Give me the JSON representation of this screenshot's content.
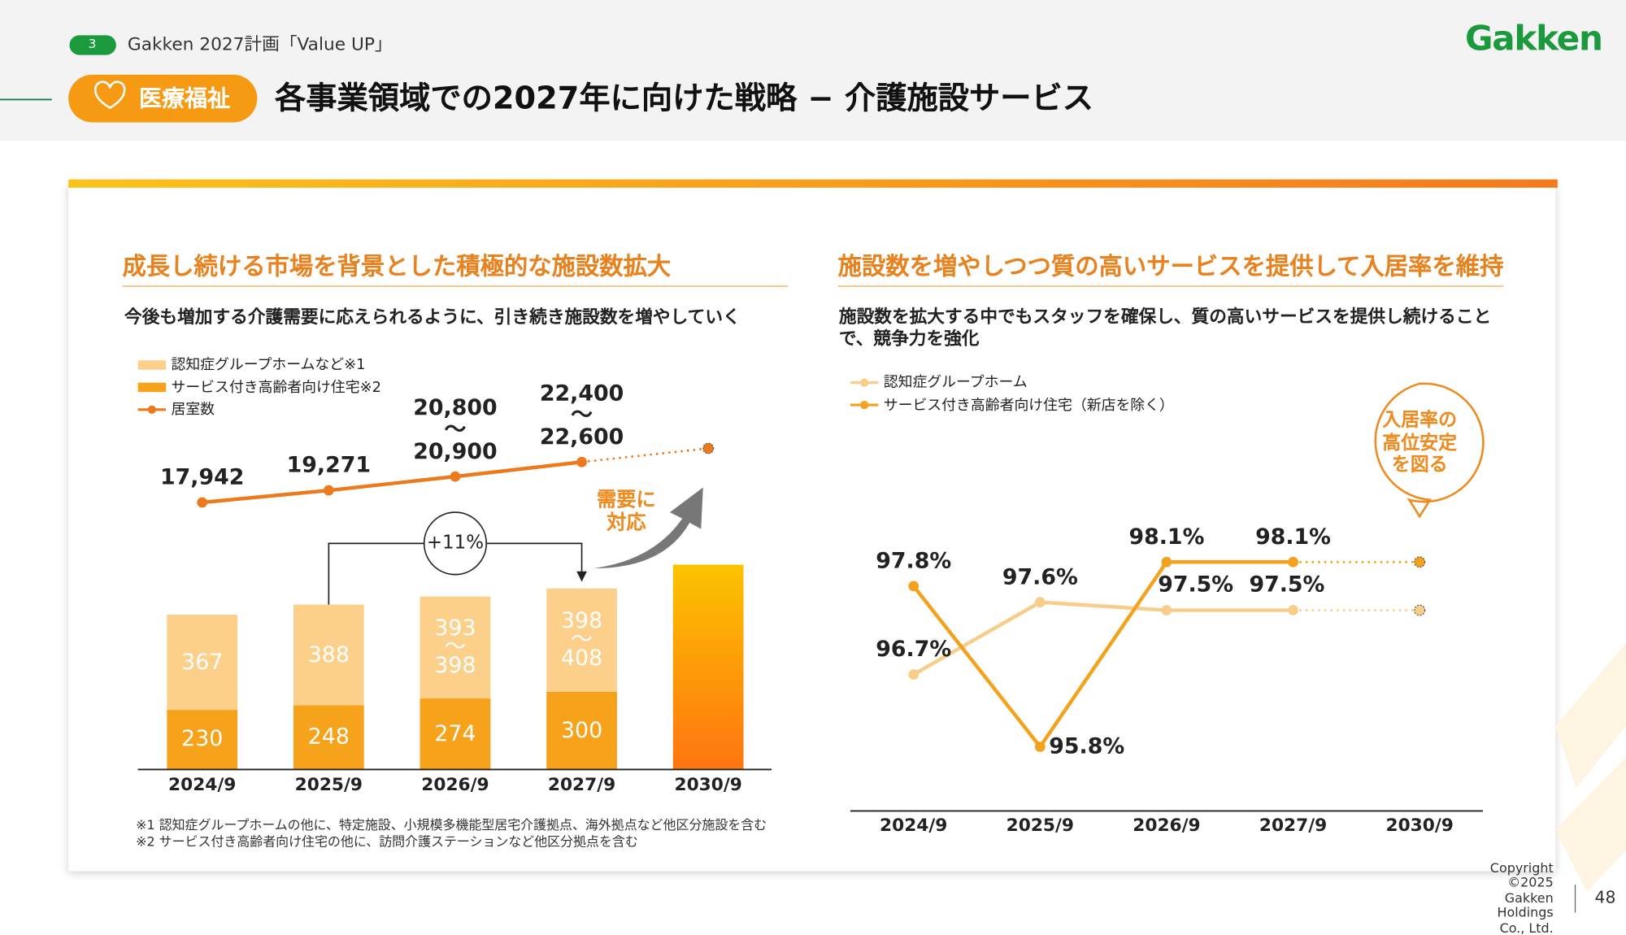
{
  "header": {
    "page_badge": "3",
    "plan": "Gakken 2027計画「Value UP」",
    "logo": "Gakken",
    "segment": "医療福祉",
    "title": "各事業領域での2027年に向けた戦略 − 介護施設サービス"
  },
  "footer": {
    "copyright": "Copyright ©2025 Gakken Holdings Co., Ltd.",
    "page": "48"
  },
  "chart_data": [
    {
      "type": "bar",
      "title": "成長し続ける市場を背景とした積極的な施設数拡大",
      "subtitle": "今後も増加する介護需要に応えられるように、引き続き施設数を増やしていく",
      "categories": [
        "2024/9",
        "2025/9",
        "2026/9",
        "2027/9",
        "2030/9"
      ],
      "series": [
        {
          "name": "サービス付き高齢者向け住宅※2",
          "color": "#f7a21b",
          "values": [
            230,
            248,
            274,
            300,
            null
          ]
        },
        {
          "name": "認知症グループホームなど※1",
          "color": "#fcd08b",
          "values": [
            367,
            388,
            393,
            398,
            null
          ],
          "value_labels": [
            "367",
            "388",
            "393\n〜\n398",
            "398\n〜\n408",
            null
          ]
        },
        {
          "color": "#ff7410",
          "values": [
            null,
            null,
            null,
            null,
            790
          ]
        },
        {
          "name": "居室数",
          "type": "line",
          "axis": "y2",
          "color": "#ec7a1c",
          "values": [
            17942,
            19271,
            20800,
            22400,
            null
          ],
          "value_labels": [
            "17,942",
            "19,271",
            "20,800\n〜\n20,900",
            "22,400\n〜\n22,600",
            null
          ]
        },
        {
          "type": "line",
          "axis": "y2",
          "style": "dotted",
          "color": "#ec7a1c",
          "values": [
            null,
            null,
            null,
            22400,
            23900
          ]
        }
      ],
      "ylim": [
        0,
        900
      ],
      "y2lim": [
        10000,
        30000
      ],
      "annotations": {
        "growth": "+11%",
        "demand": "需要に\n対応"
      },
      "notes": [
        "※1 認知症グループホームの他に、特定施設、小規模多機能型居宅介護拠点、海外拠点など他区分施設を含む",
        "※2 サービス付き高齢者向け住宅の他に、訪問介護ステーションなど他区分拠点を含む"
      ]
    },
    {
      "type": "line",
      "title": "施設数を増やしつつ質の高いサービスを提供して入居率を維持",
      "subtitle": "施設数を拡大する中でもスタッフを確保し、質の高いサービスを提供し続けることで、競争力を強化",
      "categories": [
        "2024/9",
        "2025/9",
        "2026/9",
        "2027/9",
        "2030/9"
      ],
      "series": [
        {
          "name": "認知症グループホーム",
          "color": "#f8cd8a",
          "values": [
            96.7,
            97.6,
            97.5,
            97.5,
            null
          ],
          "value_labels": [
            "96.7%",
            "97.6%",
            "97.5%",
            "97.5%",
            null
          ]
        },
        {
          "name": "サービス付き高齢者向け住宅（新店を除く）",
          "color": "#f4a11d",
          "values": [
            97.8,
            95.8,
            98.1,
            98.1,
            null
          ],
          "value_labels": [
            "97.8%",
            "95.8%",
            "98.1%",
            "98.1%",
            null
          ]
        },
        {
          "style": "dotted",
          "color": "#f8cd8a",
          "values": [
            null,
            null,
            null,
            97.5,
            97.5
          ]
        },
        {
          "style": "dotted",
          "color": "#f4a11d",
          "values": [
            null,
            null,
            null,
            98.1,
            98.1
          ]
        }
      ],
      "ylim": [
        95,
        98.5
      ],
      "annotations": {
        "callout": "入居率の\n高位安定\nを図る"
      }
    }
  ]
}
